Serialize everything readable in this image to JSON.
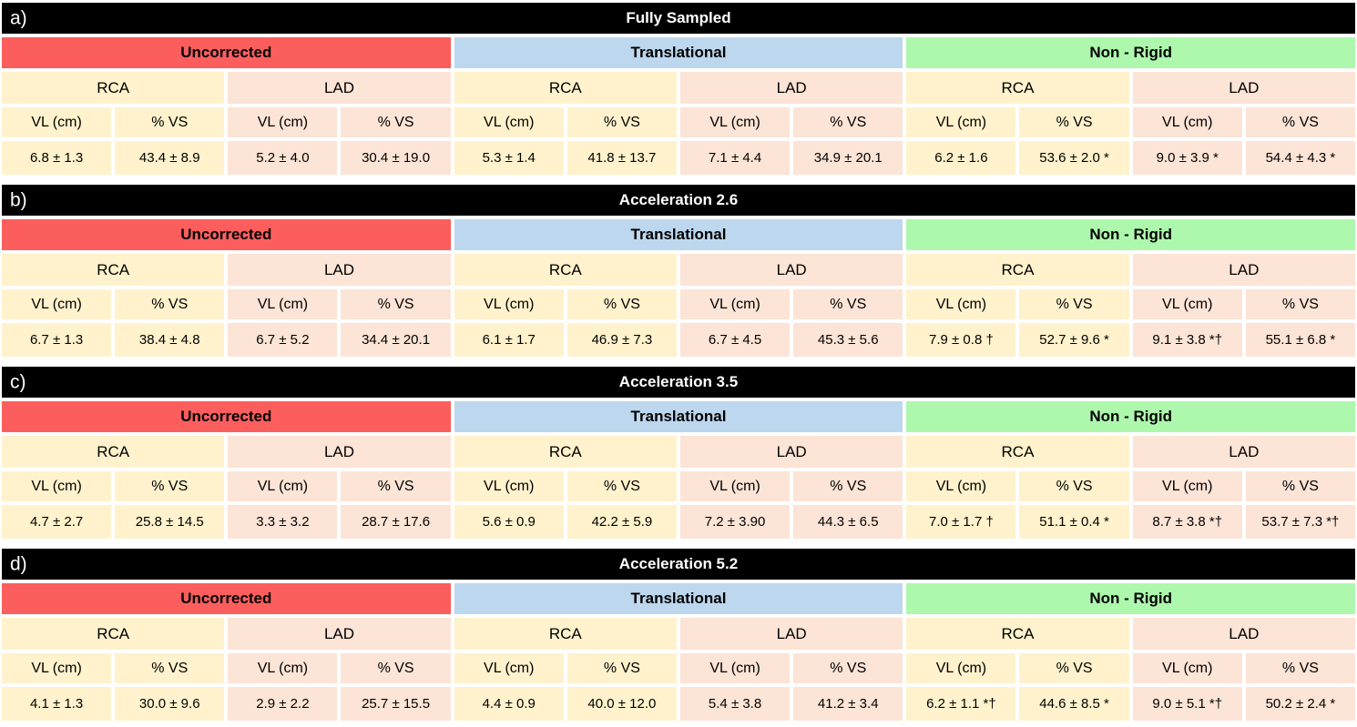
{
  "page": {
    "background": "#FFFFFF"
  },
  "colors": {
    "title_bg": "#000000",
    "title_text": "#FFFFFF",
    "uncorrected_bg": "#FC5E5E",
    "translational_bg": "#BDD7EE",
    "nonrigid_bg": "#ADF8AD",
    "rca_bg": "#FFF2CC",
    "lad_bg": "#FCE4D6",
    "cell_text": "#000000"
  },
  "structure": {
    "groups": [
      "Uncorrected",
      "Translational",
      "Non - Rigid"
    ],
    "vessels": [
      "RCA",
      "LAD"
    ],
    "metrics": [
      "VL (cm)",
      "% VS"
    ]
  },
  "tables": [
    {
      "panel": "a)",
      "title": "Fully Sampled",
      "values": [
        "6.8 ± 1.3",
        "43.4 ± 8.9",
        "5.2 ± 4.0",
        "30.4 ± 19.0",
        "5.3 ± 1.4",
        "41.8 ± 13.7",
        "7.1 ± 4.4",
        "34.9 ± 20.1",
        "6.2 ± 1.6",
        "53.6 ± 2.0 *",
        "9.0 ± 3.9 *",
        "54.4 ± 4.3 *"
      ]
    },
    {
      "panel": "b)",
      "title": "Acceleration 2.6",
      "values": [
        "6.7 ± 1.3",
        "38.4 ± 4.8",
        "6.7 ± 5.2",
        "34.4 ± 20.1",
        "6.1 ± 1.7",
        "46.9 ± 7.3",
        "6.7 ± 4.5",
        "45.3 ± 5.6",
        "7.9 ± 0.8 †",
        "52.7 ± 9.6 *",
        "9.1 ± 3.8 *†",
        "55.1 ± 6.8 *"
      ]
    },
    {
      "panel": "c)",
      "title": "Acceleration 3.5",
      "values": [
        "4.7 ± 2.7",
        "25.8 ± 14.5",
        "3.3 ± 3.2",
        "28.7 ± 17.6",
        "5.6 ± 0.9",
        "42.2 ± 5.9",
        "7.2 ± 3.90",
        "44.3 ± 6.5",
        "7.0 ± 1.7 †",
        "51.1 ± 0.4 *",
        "8.7 ± 3.8 *†",
        "53.7 ± 7.3 *†"
      ]
    },
    {
      "panel": "d)",
      "title": "Acceleration 5.2",
      "values": [
        "4.1 ± 1.3",
        "30.0 ± 9.6",
        "2.9 ± 2.2",
        "25.7 ± 15.5",
        "4.4 ± 0.9",
        "40.0 ± 12.0",
        "5.4 ± 3.8",
        "41.2 ± 3.4",
        "6.2 ± 1.1 *†",
        "44.6 ± 8.5 *",
        "9.0 ± 5.1 *†",
        "50.2 ± 2.4 *"
      ]
    }
  ]
}
